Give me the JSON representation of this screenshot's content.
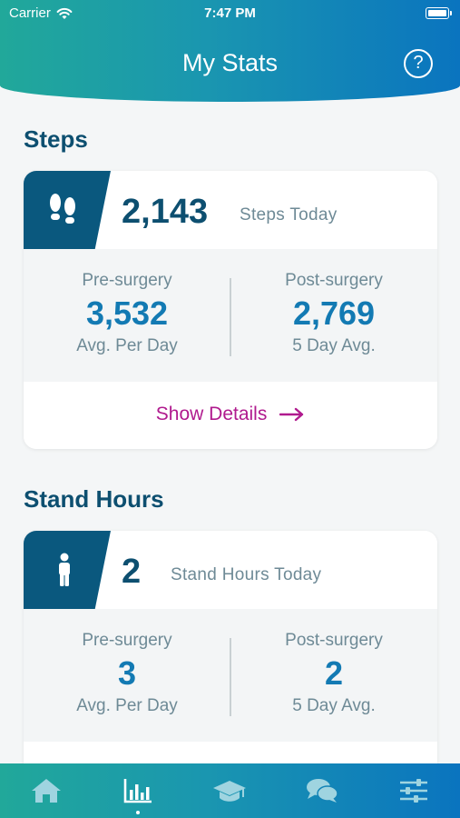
{
  "status_bar": {
    "carrier": "Carrier",
    "time": "7:47 PM"
  },
  "header": {
    "title": "My Stats",
    "help_label": "?"
  },
  "steps": {
    "section_title": "Steps",
    "today_value": "2,143",
    "today_label": "Steps Today",
    "pre": {
      "label": "Pre-surgery",
      "value": "3,532",
      "sub": "Avg. Per Day"
    },
    "post": {
      "label": "Post-surgery",
      "value": "2,769",
      "sub": "5 Day Avg."
    },
    "details_label": "Show Details"
  },
  "stand": {
    "section_title": "Stand Hours",
    "today_value": "2",
    "today_label": "Stand Hours Today",
    "pre": {
      "label": "Pre-surgery",
      "value": "3",
      "sub": "Avg. Per Day"
    },
    "post": {
      "label": "Post-surgery",
      "value": "2",
      "sub": "5 Day Avg."
    }
  },
  "tabs": [
    {
      "icon": "home-icon",
      "active": false
    },
    {
      "icon": "bar-chart-icon",
      "active": true
    },
    {
      "icon": "graduation-cap-icon",
      "active": false
    },
    {
      "icon": "chat-bubbles-icon",
      "active": false
    },
    {
      "icon": "sliders-icon",
      "active": false
    }
  ],
  "colors": {
    "header_gradient_start": "#21a89a",
    "header_gradient_end": "#0a74bf",
    "dark_blue": "#0d4f70",
    "value_blue": "#137ab3",
    "accent_magenta": "#b01a8e"
  }
}
